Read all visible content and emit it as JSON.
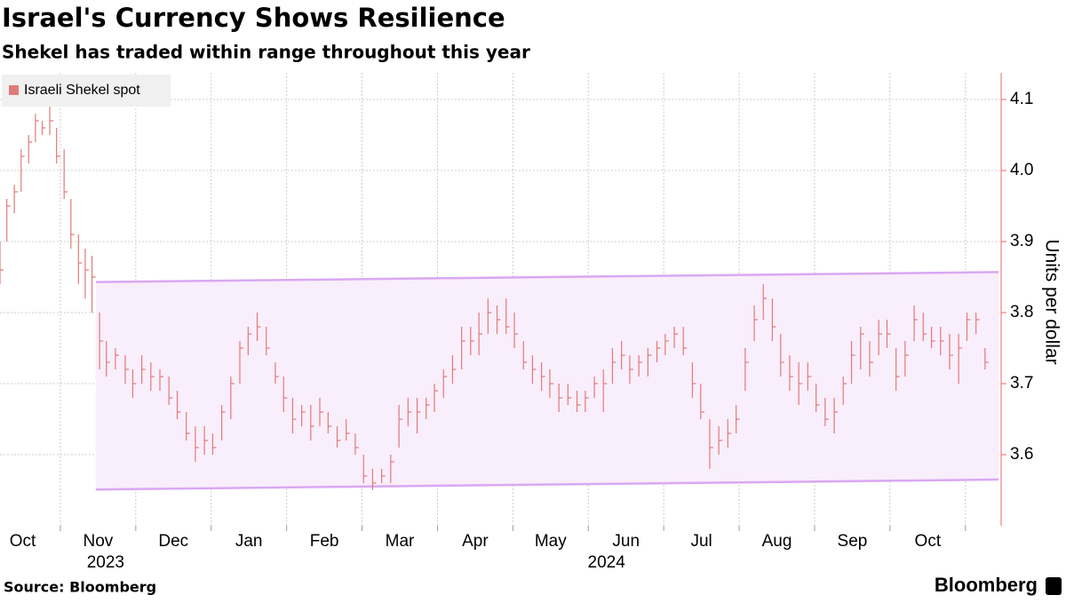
{
  "chart_data": {
    "type": "ohlc",
    "title": "Israel's Currency Shows Resilience",
    "subtitle": "Shekel has traded within range throughout this year",
    "y_label": "Units per dollar",
    "legend": "top-left",
    "grid": true,
    "xlim": [
      0.2,
      13.45
    ],
    "xgrid": [
      1,
      2,
      3,
      4,
      5,
      6,
      7,
      8,
      9,
      10,
      11,
      12,
      13
    ],
    "xticks": [
      {
        "value": 0.5,
        "label": "Oct"
      },
      {
        "value": 1.5,
        "label": "Nov"
      },
      {
        "value": 2.5,
        "label": "Dec"
      },
      {
        "value": 3.5,
        "label": "Jan"
      },
      {
        "value": 4.5,
        "label": "Feb"
      },
      {
        "value": 5.5,
        "label": "Mar"
      },
      {
        "value": 6.5,
        "label": "Apr"
      },
      {
        "value": 7.5,
        "label": "May"
      },
      {
        "value": 8.5,
        "label": "Jun"
      },
      {
        "value": 9.5,
        "label": "Jul"
      },
      {
        "value": 10.5,
        "label": "Aug"
      },
      {
        "value": 11.5,
        "label": "Sep"
      },
      {
        "value": 12.5,
        "label": "Oct"
      }
    ],
    "x_group_labels": [
      {
        "value": 1.6,
        "label": "2023"
      },
      {
        "value": 8.24,
        "label": "2024"
      }
    ],
    "ylim": [
      3.5,
      4.1375
    ],
    "yticks": [
      3.6,
      3.7,
      3.8,
      3.9,
      {
        "value": 4.0,
        "label": "4.0"
      },
      4.1
    ],
    "channel": {
      "color": "#d9a8f2",
      "fill": "#f9eefb",
      "x": [
        1.47,
        13.44
      ],
      "upper": [
        3.843,
        3.857
      ],
      "lower": [
        3.551,
        3.565
      ]
    },
    "series": [
      {
        "name": "Israeli Shekel spot",
        "color": "#e07a7a",
        "x": [
          0.2,
          0.29,
          0.39,
          0.48,
          0.58,
          0.67,
          0.76,
          0.86,
          0.95,
          1.05,
          1.14,
          1.24,
          1.33,
          1.42,
          1.52,
          1.61,
          1.73,
          1.86,
          1.96,
          2.08,
          2.2,
          2.32,
          2.44,
          2.55,
          2.67,
          2.79,
          2.91,
          3.02,
          3.14,
          3.26,
          3.38,
          3.49,
          3.61,
          3.73,
          3.85,
          3.96,
          4.08,
          4.2,
          4.32,
          4.44,
          4.55,
          4.67,
          4.79,
          4.91,
          5.02,
          5.14,
          5.26,
          5.38,
          5.49,
          5.61,
          5.73,
          5.85,
          5.96,
          6.08,
          6.2,
          6.32,
          6.44,
          6.55,
          6.67,
          6.79,
          6.91,
          7.02,
          7.14,
          7.26,
          7.38,
          7.49,
          7.61,
          7.73,
          7.85,
          7.96,
          8.08,
          8.2,
          8.32,
          8.44,
          8.55,
          8.67,
          8.79,
          8.91,
          9.02,
          9.14,
          9.26,
          9.38,
          9.49,
          9.61,
          9.73,
          9.85,
          9.96,
          10.08,
          10.2,
          10.32,
          10.44,
          10.55,
          10.67,
          10.79,
          10.91,
          11.02,
          11.14,
          11.26,
          11.38,
          11.49,
          11.61,
          11.73,
          11.85,
          11.96,
          12.08,
          12.2,
          12.32,
          12.44,
          12.55,
          12.67,
          12.79,
          12.91,
          13.02,
          13.14,
          13.26
        ],
        "high": [
          3.9,
          3.96,
          3.98,
          4.03,
          4.05,
          4.08,
          4.07,
          4.09,
          4.06,
          4.03,
          3.96,
          3.91,
          3.89,
          3.88,
          3.8,
          3.76,
          3.75,
          3.74,
          3.72,
          3.74,
          3.73,
          3.72,
          3.71,
          3.69,
          3.66,
          3.64,
          3.64,
          3.63,
          3.67,
          3.71,
          3.76,
          3.78,
          3.8,
          3.78,
          3.73,
          3.71,
          3.68,
          3.67,
          3.67,
          3.68,
          3.66,
          3.64,
          3.65,
          3.63,
          3.6,
          3.58,
          3.58,
          3.6,
          3.67,
          3.68,
          3.68,
          3.68,
          3.7,
          3.72,
          3.74,
          3.78,
          3.78,
          3.8,
          3.82,
          3.81,
          3.82,
          3.8,
          3.76,
          3.74,
          3.73,
          3.72,
          3.7,
          3.7,
          3.69,
          3.69,
          3.71,
          3.72,
          3.75,
          3.76,
          3.74,
          3.74,
          3.75,
          3.76,
          3.77,
          3.78,
          3.78,
          3.73,
          3.7,
          3.65,
          3.64,
          3.65,
          3.67,
          3.75,
          3.81,
          3.84,
          3.82,
          3.77,
          3.74,
          3.73,
          3.73,
          3.7,
          3.68,
          3.68,
          3.71,
          3.76,
          3.78,
          3.76,
          3.79,
          3.79,
          3.75,
          3.76,
          3.81,
          3.8,
          3.78,
          3.78,
          3.77,
          3.77,
          3.8,
          3.8,
          3.75
        ],
        "low": [
          3.84,
          3.9,
          3.94,
          3.97,
          4.01,
          4.04,
          4.05,
          4.05,
          4.01,
          3.96,
          3.89,
          3.84,
          3.82,
          3.8,
          3.72,
          3.71,
          3.72,
          3.7,
          3.68,
          3.7,
          3.69,
          3.69,
          3.67,
          3.65,
          3.62,
          3.59,
          3.6,
          3.6,
          3.62,
          3.65,
          3.7,
          3.74,
          3.76,
          3.74,
          3.7,
          3.66,
          3.63,
          3.64,
          3.62,
          3.64,
          3.63,
          3.61,
          3.62,
          3.6,
          3.56,
          3.55,
          3.56,
          3.56,
          3.61,
          3.64,
          3.63,
          3.65,
          3.66,
          3.68,
          3.7,
          3.72,
          3.74,
          3.74,
          3.77,
          3.77,
          3.77,
          3.75,
          3.72,
          3.7,
          3.69,
          3.68,
          3.66,
          3.67,
          3.66,
          3.66,
          3.68,
          3.66,
          3.7,
          3.72,
          3.7,
          3.71,
          3.71,
          3.73,
          3.74,
          3.75,
          3.74,
          3.68,
          3.65,
          3.58,
          3.6,
          3.61,
          3.63,
          3.69,
          3.76,
          3.79,
          3.76,
          3.71,
          3.69,
          3.67,
          3.69,
          3.66,
          3.64,
          3.63,
          3.67,
          3.7,
          3.72,
          3.71,
          3.74,
          3.75,
          3.69,
          3.71,
          3.76,
          3.76,
          3.75,
          3.74,
          3.72,
          3.7,
          3.76,
          3.77,
          3.72
        ],
        "values": [
          3.86,
          3.95,
          3.97,
          4.02,
          4.04,
          4.07,
          4.06,
          4.07,
          4.02,
          3.97,
          3.91,
          3.87,
          3.86,
          3.85,
          3.76,
          3.73,
          3.74,
          3.72,
          3.7,
          3.72,
          3.71,
          3.71,
          3.68,
          3.66,
          3.63,
          3.61,
          3.62,
          3.61,
          3.66,
          3.7,
          3.75,
          3.77,
          3.78,
          3.75,
          3.71,
          3.68,
          3.65,
          3.66,
          3.64,
          3.66,
          3.64,
          3.62,
          3.63,
          3.61,
          3.57,
          3.56,
          3.57,
          3.59,
          3.65,
          3.66,
          3.66,
          3.67,
          3.69,
          3.71,
          3.72,
          3.76,
          3.76,
          3.77,
          3.8,
          3.79,
          3.78,
          3.77,
          3.73,
          3.72,
          3.71,
          3.7,
          3.68,
          3.68,
          3.67,
          3.68,
          3.7,
          3.7,
          3.73,
          3.74,
          3.72,
          3.73,
          3.74,
          3.75,
          3.76,
          3.77,
          3.75,
          3.7,
          3.66,
          3.61,
          3.62,
          3.63,
          3.65,
          3.73,
          3.79,
          3.82,
          3.78,
          3.73,
          3.71,
          3.7,
          3.71,
          3.67,
          3.65,
          3.66,
          3.7,
          3.74,
          3.77,
          3.73,
          3.77,
          3.77,
          3.71,
          3.74,
          3.79,
          3.77,
          3.76,
          3.76,
          3.74,
          3.75,
          3.79,
          3.79,
          3.73
        ]
      }
    ]
  },
  "footer": {
    "source": "Source: Bloomberg",
    "brand": "Bloomberg"
  }
}
